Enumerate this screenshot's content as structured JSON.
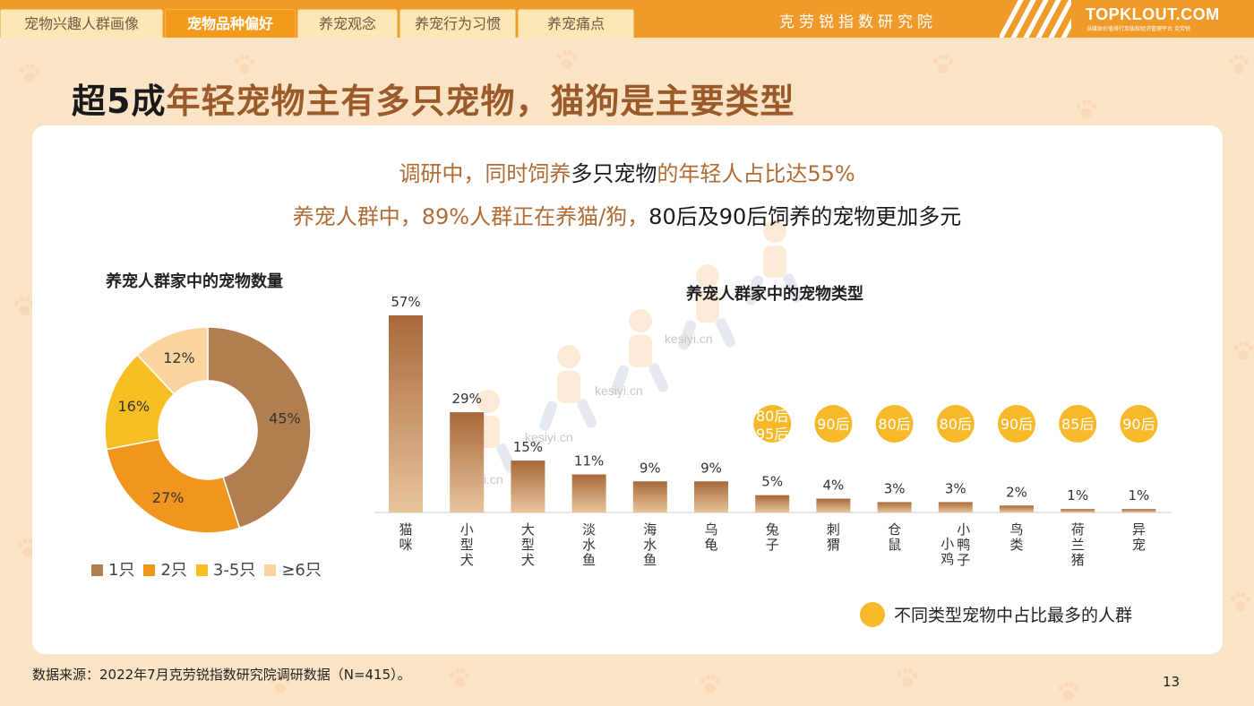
{
  "nav": {
    "tabs": [
      {
        "label": "宠物兴趣人群画像"
      },
      {
        "label": "宠物品种偏好",
        "active": true
      },
      {
        "label": "养宠观念"
      },
      {
        "label": "养宠行为习惯"
      },
      {
        "label": "养宠痛点"
      }
    ],
    "brand_cn": "克劳锐指数研究院",
    "logo": "TOPKLOUT.COM",
    "logo_sub": "自媒体价值排行及版权经济管理平台 克劳锐"
  },
  "title": {
    "black_part": "超5成",
    "rest": "年轻宠物主有多只宠物，猫狗是主要类型"
  },
  "subtitle1": {
    "a": "调研中，同时饲养",
    "b": "多只宠物",
    "c": "的年轻人占比达55%"
  },
  "subtitle2": {
    "a": "养宠人群中，89%人群正在养猫/狗，",
    "b": "80后及90后饲养的宠物更加多元"
  },
  "colors": {
    "brown": "#b07e4f",
    "orange": "#f0961e",
    "yellow": "#f6be22",
    "light": "#fcd49d",
    "accent": "#f7b92a"
  },
  "watermark": "kesiyi.cn",
  "chart_data": [
    {
      "type": "pie",
      "title": "养宠人群家中的宠物数量",
      "labels": [
        "1只",
        "2只",
        "3-5只",
        "≥6只"
      ],
      "values": [
        45,
        27,
        16,
        12
      ],
      "value_labels": [
        "45%",
        "27%",
        "16%",
        "12%"
      ],
      "donut": true,
      "legend_position": "bottom"
    },
    {
      "type": "bar",
      "title": "养宠人群家中的宠物类型",
      "categories": [
        "猫咪",
        "小型犬",
        "大型犬",
        "淡水鱼",
        "海水鱼",
        "乌龟",
        "兔子",
        "刺猬",
        "仓鼠",
        "小鸡小鸭子",
        "鸟类",
        "荷兰猪",
        "异宠"
      ],
      "category_lines": [
        [
          "猫",
          "咪"
        ],
        [
          "小",
          "型",
          "犬"
        ],
        [
          "大",
          "型",
          "犬"
        ],
        [
          "淡",
          "水",
          "鱼"
        ],
        [
          "海",
          "水",
          "鱼"
        ],
        [
          "乌",
          "龟"
        ],
        [
          "兔",
          "子"
        ],
        [
          "刺",
          "猬"
        ],
        [
          "仓",
          "鼠"
        ],
        [
          "小鸭子",
          "小鸡"
        ],
        [
          "鸟",
          "类"
        ],
        [
          "荷",
          "兰",
          "猪"
        ],
        [
          "异",
          "宠"
        ]
      ],
      "values": [
        57,
        29,
        15,
        11,
        9,
        9,
        5,
        4,
        3,
        3,
        2,
        1,
        1
      ],
      "value_labels": [
        "57%",
        "29%",
        "15%",
        "11%",
        "9%",
        "9%",
        "5%",
        "4%",
        "3%",
        "3%",
        "2%",
        "1%",
        "1%"
      ],
      "top_group_badges": [
        null,
        null,
        null,
        null,
        null,
        null,
        [
          "80后",
          "95后"
        ],
        [
          "90后"
        ],
        [
          "80后"
        ],
        [
          "80后"
        ],
        [
          "90后"
        ],
        [
          "85后"
        ],
        [
          "90后"
        ]
      ],
      "ylim": [
        0,
        57
      ],
      "legend": "不同类型宠物中占比最多的人群"
    }
  ],
  "source": "数据来源：2022年7月克劳锐指数研究院调研数据（N=415）。",
  "page_number": "13"
}
